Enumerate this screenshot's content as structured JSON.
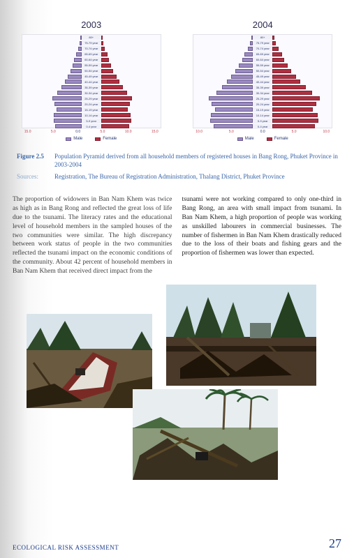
{
  "charts": [
    {
      "year": "2003",
      "age_bands": [
        "80+",
        "75-79 year",
        "70-74 year",
        "65-69 year",
        "60-64 year",
        "55-59 year",
        "50-54 year",
        "45-49 year",
        "40-44 year",
        "35-39 year",
        "30-34 year",
        "25-29 year",
        "20-24 year",
        "15-19 year",
        "10-14 year",
        "5-9 year",
        "0-4 year"
      ],
      "male": [
        0.2,
        0.5,
        0.9,
        1.4,
        1.8,
        2.2,
        2.8,
        3.5,
        4.2,
        5.0,
        6.0,
        7.2,
        6.8,
        6.2,
        6.9,
        7.0,
        6.5
      ],
      "female": [
        0.3,
        0.6,
        1.0,
        1.6,
        2.0,
        2.4,
        3.0,
        3.8,
        4.5,
        5.4,
        6.5,
        7.8,
        7.2,
        6.6,
        7.4,
        7.5,
        7.0
      ],
      "x_max": 15,
      "axis_labels": [
        "15.0",
        "5.0",
        "0.0",
        "5.0",
        "10.0",
        "15.0"
      ]
    },
    {
      "year": "2004",
      "age_bands": [
        "80+",
        "75-79 year",
        "70-74 year",
        "65-69 year",
        "60-64 year",
        "55-59 year",
        "50-54 year",
        "45-49 year",
        "40-44 year",
        "35-39 year",
        "30-34 year",
        "25-29 year",
        "20-24 year",
        "15-19 year",
        "10-14 year",
        "5-9 year",
        "0-4 year"
      ],
      "male": [
        0.2,
        0.5,
        0.9,
        1.4,
        1.8,
        2.3,
        2.9,
        3.6,
        4.3,
        5.1,
        6.1,
        7.3,
        6.9,
        6.3,
        7.0,
        7.1,
        6.6
      ],
      "female": [
        0.3,
        0.6,
        1.0,
        1.6,
        2.0,
        2.5,
        3.1,
        3.9,
        4.6,
        5.5,
        6.6,
        7.9,
        7.3,
        6.7,
        7.5,
        7.6,
        7.1
      ],
      "x_max": 10,
      "axis_labels": [
        "10.0",
        "5.0",
        "0.0",
        "5.0",
        "10.0"
      ]
    }
  ],
  "legend": {
    "male": "Male",
    "female": "Female"
  },
  "caption": {
    "label": "Figure 2.5",
    "text": "Population Pyramid derived from all household members of registered houses in Bang Rong, Phuket Province in 2003-2004"
  },
  "sources": {
    "label": "Sources:",
    "text": "Registration, The Bureau of Registration Administration, Thalang District, Phuket Province"
  },
  "body": {
    "left": "The proportion of widowers in Ban Nam Khem was twice as high as in Bang Rong and reflected the great loss of life due to the tsunami. The literacy rates and the educational level of household members in the sampled houses of the two communities were similar. The high discrepancy between work status of people in the two communities reflected the tsunami impact on the economic conditions of the community. About 42 percent of household members in Ban Nam Khem that received direct impact from the",
    "right": "tsunami were not working compared to only one-third in Bang Rong, an area with small impact from tsunami. In Ban Nam Khem, a high proportion of people was working as unskilled labourers in commercial businesses. The number of fishermen in Ban Nam Khem drastically reduced due to the loss of their boats and fishing gears and the proportion of fishermen was lower than expected."
  },
  "footer": {
    "title": "ECOLOGICAL RISK ASSESSMENT",
    "page": "27"
  },
  "colors": {
    "male_bar": "#9a8ac0",
    "female_bar": "#b03040",
    "caption_blue": "#3a66a8",
    "footer_blue": "#1a3a8a"
  }
}
